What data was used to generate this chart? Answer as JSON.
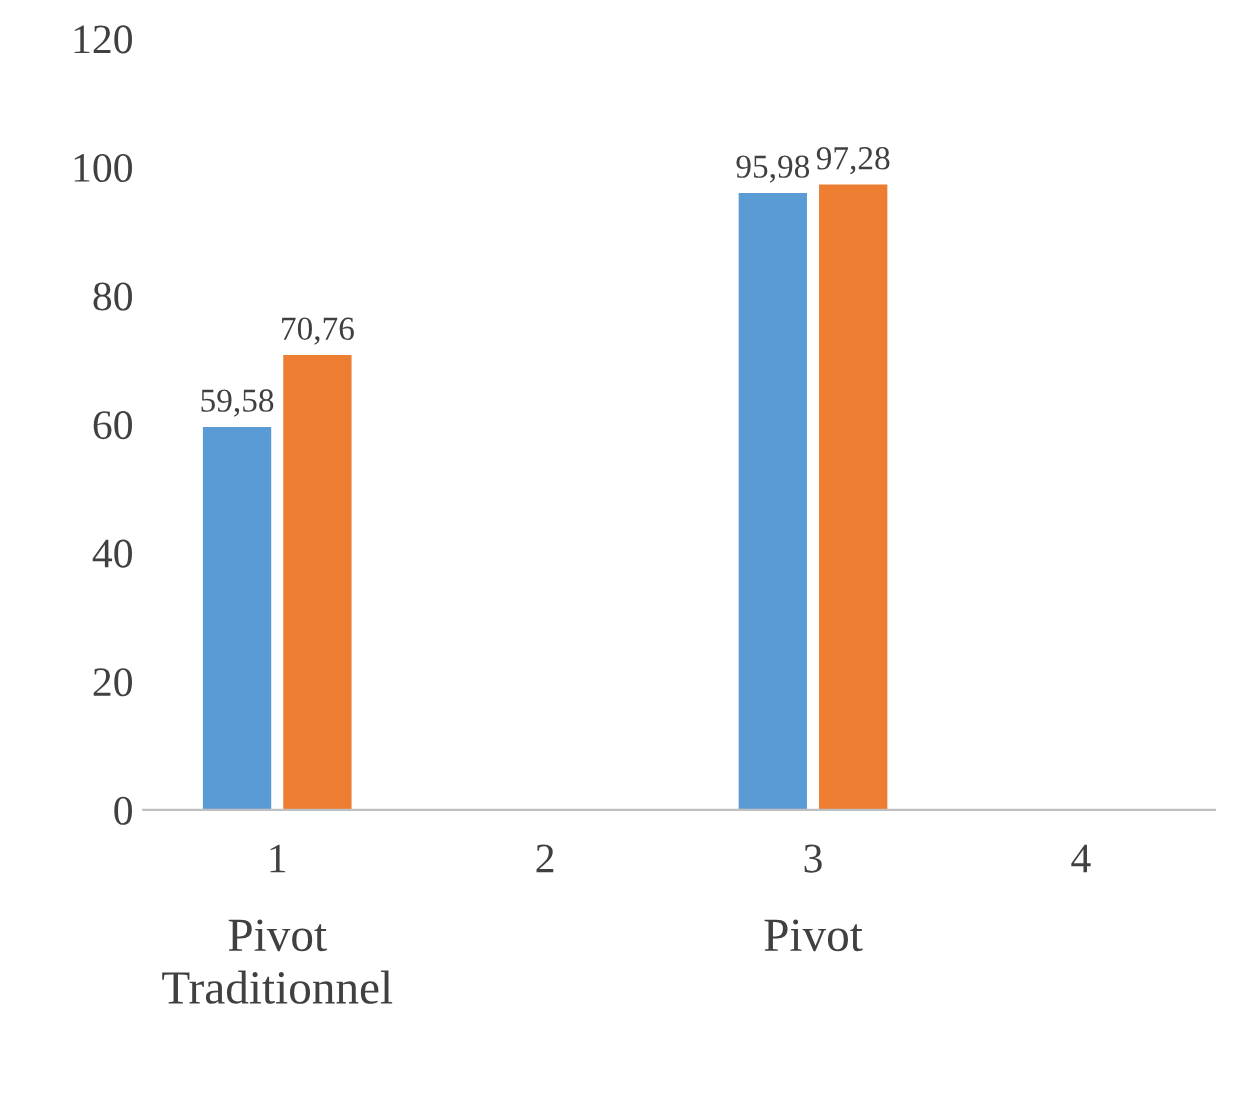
{
  "chart_data": {
    "type": "bar",
    "categories": [
      "1",
      "2",
      "3",
      "4"
    ],
    "series": [
      {
        "color": "#5b9bd5",
        "values": [
          59.58,
          null,
          95.98,
          null
        ],
        "value_labels": [
          "59,58",
          null,
          "95,98",
          null
        ]
      },
      {
        "color": "#ed7d31",
        "values": [
          70.76,
          null,
          97.28,
          null
        ],
        "value_labels": [
          "70,76",
          null,
          "97,28",
          null
        ]
      }
    ],
    "ylim": [
      0,
      120
    ],
    "yticks": [
      0,
      20,
      40,
      60,
      80,
      100,
      120
    ],
    "grid": false,
    "legend": false,
    "annotations": [
      "Pivot\nTraditionnel",
      "Pivot"
    ]
  }
}
